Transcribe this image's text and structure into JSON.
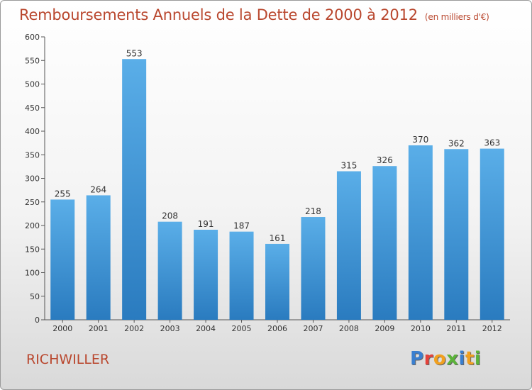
{
  "chart_data": {
    "type": "bar",
    "title": "Remboursements Annuels de la Dette de 2000 à 2012",
    "unit_note": "(en milliers d'€)",
    "categories": [
      "2000",
      "2001",
      "2002",
      "2003",
      "2004",
      "2005",
      "2006",
      "2007",
      "2008",
      "2009",
      "2010",
      "2011",
      "2012"
    ],
    "values": [
      255,
      264,
      553,
      208,
      191,
      187,
      161,
      218,
      315,
      326,
      370,
      362,
      363
    ],
    "ylim": [
      0,
      600
    ],
    "yticks": [
      0,
      50,
      100,
      150,
      200,
      250,
      300,
      350,
      400,
      450,
      500,
      550,
      600
    ],
    "grid": false,
    "legend": "none",
    "bar_color_top": "#5aaee8",
    "bar_color_bottom": "#2a7bbf"
  },
  "commune": "RICHWILLER",
  "logo": {
    "text": "Proxiti",
    "letters": [
      {
        "ch": "P",
        "color": "#3a7fd0"
      },
      {
        "ch": "r",
        "color": "#e6423a"
      },
      {
        "ch": "o",
        "color": "#f2a01e"
      },
      {
        "ch": "x",
        "color": "#5bb33a"
      },
      {
        "ch": "i",
        "color": "#3a7fd0"
      },
      {
        "ch": "t",
        "color": "#f2a01e"
      },
      {
        "ch": "i",
        "color": "#5bb33a"
      }
    ]
  }
}
